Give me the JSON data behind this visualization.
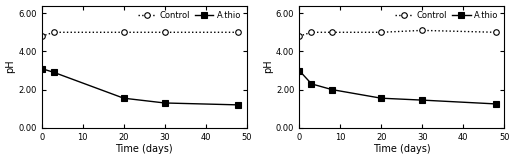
{
  "left": {
    "control_x": [
      0,
      3,
      20,
      30,
      48
    ],
    "control_y": [
      4.8,
      5.0,
      5.0,
      5.0,
      5.0
    ],
    "athio_x": [
      0,
      3,
      20,
      30,
      48
    ],
    "athio_y": [
      3.1,
      2.9,
      1.55,
      1.3,
      1.2
    ],
    "xlabel": "Time (days)",
    "ylabel": "pH",
    "ylim": [
      0.0,
      6.4
    ],
    "yticks": [
      0.0,
      2.0,
      4.0,
      6.0
    ],
    "xticks": [
      0,
      10,
      20,
      30,
      40,
      50
    ],
    "xlim": [
      0,
      50
    ]
  },
  "right": {
    "control_x": [
      0,
      3,
      8,
      20,
      30,
      48
    ],
    "control_y": [
      4.8,
      5.0,
      5.0,
      5.0,
      5.1,
      5.0
    ],
    "athio_x": [
      0,
      3,
      8,
      20,
      30,
      48
    ],
    "athio_y": [
      3.0,
      2.3,
      2.0,
      1.55,
      1.45,
      1.25
    ],
    "xlabel": "Time (days)",
    "ylabel": "pH",
    "ylim": [
      0.0,
      6.4
    ],
    "yticks": [
      0.0,
      2.0,
      4.0,
      6.0
    ],
    "xticks": [
      0,
      10,
      20,
      30,
      40,
      50
    ],
    "xlim": [
      0,
      50
    ]
  },
  "legend_labels": [
    "Control",
    "A.thio"
  ],
  "control_marker": "o",
  "control_linestyle": "dotted",
  "athio_marker": "s",
  "athio_linestyle": "solid",
  "line_color": "black",
  "marker_fc_control": "white",
  "marker_fc_athio": "black",
  "markersize": 4,
  "linewidth": 1.0,
  "tick_fontsize": 6,
  "label_fontsize": 7,
  "legend_fontsize": 6,
  "ytick_labels": [
    "0.00",
    "2.00",
    "4.00",
    "6.00"
  ]
}
